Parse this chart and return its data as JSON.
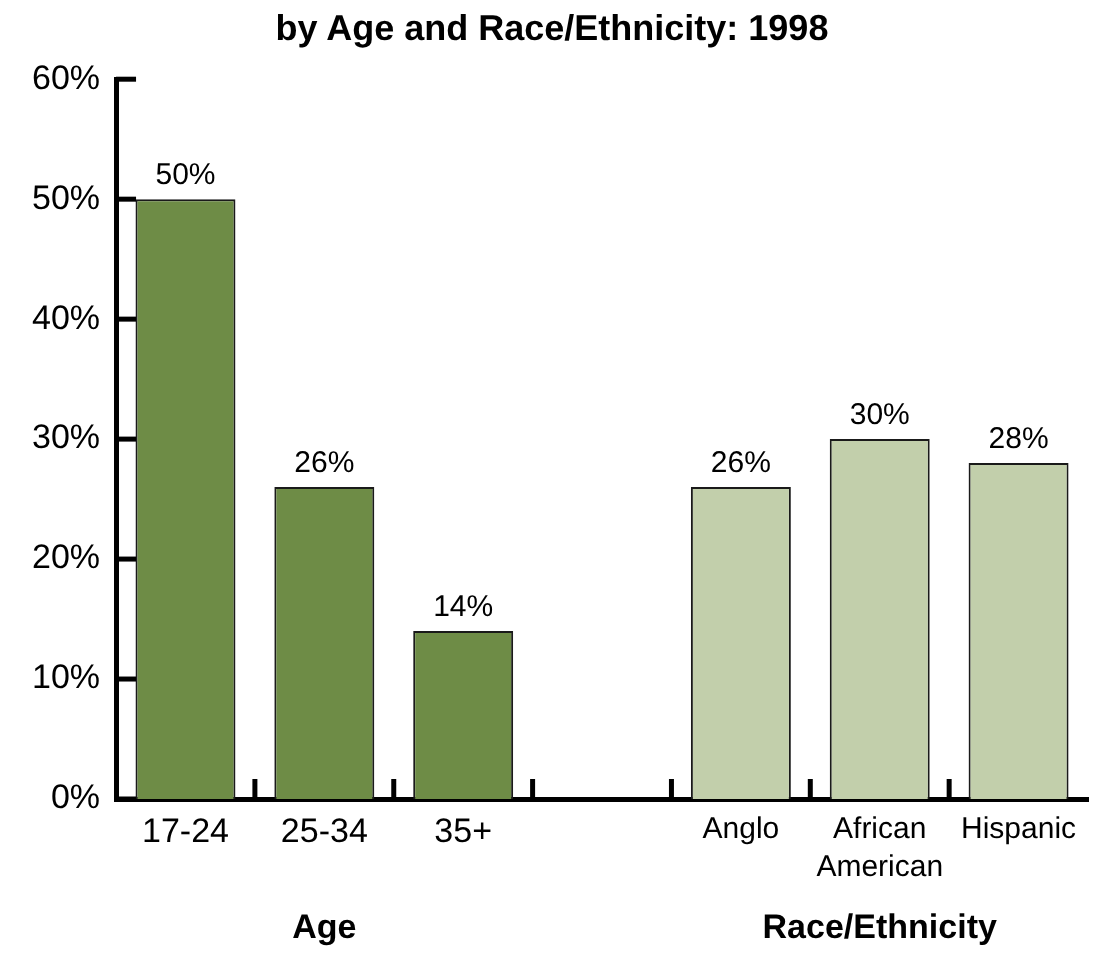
{
  "chart_data": {
    "type": "bar",
    "title": "by Age and Race/Ethnicity: 1998",
    "categories": [
      "17-24",
      "25-34",
      "35+",
      null,
      "Anglo",
      "African American",
      "Hispanic"
    ],
    "values": [
      50,
      26,
      14,
      null,
      26,
      30,
      28
    ],
    "colors": [
      "#6e8c46",
      "#6e8c46",
      "#6e8c46",
      null,
      "#c2cfab",
      "#c2cfab",
      "#c2cfab"
    ],
    "value_labels": [
      "50%",
      "26%",
      "14%",
      null,
      "26%",
      "30%",
      "28%"
    ],
    "ylim": [
      0,
      60
    ],
    "yticks": [
      {
        "value": 0,
        "label": "0%"
      },
      {
        "value": 10,
        "label": "10%"
      },
      {
        "value": 20,
        "label": "20%"
      },
      {
        "value": 30,
        "label": "30%"
      },
      {
        "value": 40,
        "label": "40%"
      },
      {
        "value": 50,
        "label": "50%"
      },
      {
        "value": 60,
        "label": "60%"
      }
    ],
    "grid": false,
    "legend": false,
    "annotations": [
      "Age",
      "Race/Ethnicity"
    ]
  }
}
